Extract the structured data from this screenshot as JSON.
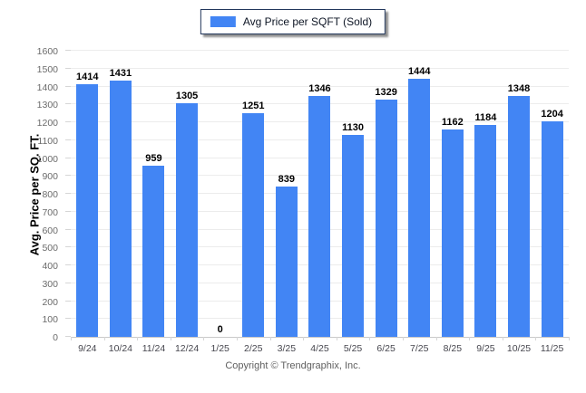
{
  "legend": {
    "label": "Avg Price per SQFT (Sold)",
    "swatch_color": "#4285f4"
  },
  "footer": {
    "text": "Copyright © Trendgraphix, Inc."
  },
  "chart_data": {
    "type": "bar",
    "title": "",
    "xlabel": "",
    "ylabel": "Avg. Price per SQ. FT.",
    "categories": [
      "9/24",
      "10/24",
      "11/24",
      "12/24",
      "1/25",
      "2/25",
      "3/25",
      "4/25",
      "5/25",
      "6/25",
      "7/25",
      "8/25",
      "9/25",
      "10/25",
      "11/25"
    ],
    "series": [
      {
        "name": "Avg Price per SQFT (Sold)",
        "values": [
          1414,
          1431,
          959,
          1305,
          0,
          1251,
          839,
          1346,
          1130,
          1329,
          1444,
          1162,
          1184,
          1348,
          1204
        ]
      }
    ],
    "ylim": [
      0,
      1600
    ],
    "ytick_step": 100,
    "grid": true,
    "data_labels": true,
    "legend_position": "top-center",
    "bar_color": "#4285f4"
  }
}
